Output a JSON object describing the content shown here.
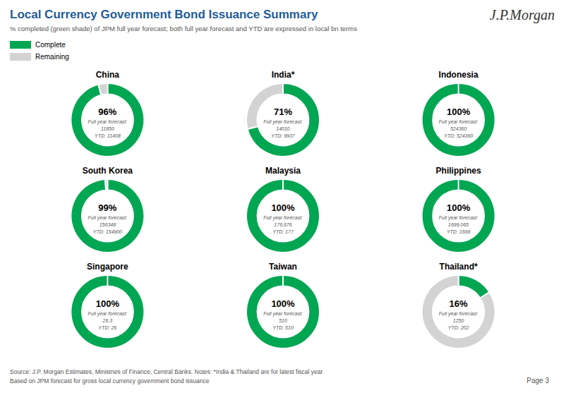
{
  "title": "Local Currency Government Bond Issuance Summary",
  "subtitle": "% completed (green shade) of JPM full year forecast; both full year forecast and YTD are expressed in local bn terms",
  "annotations": [
    "J.P.Morgan",
    "Source: J.P. Morgan Estimates, Ministries of Finance, Central Banks. Notes: *India & Thailand are for latest fiscal year",
    "Based on JPM forecast for gross local currency government bond issuance",
    "Page 3"
  ],
  "chart_data": [
    {
      "type": "pie",
      "title": "China",
      "categories": [
        "Complete",
        "Remaining"
      ],
      "values": [
        96,
        4
      ],
      "value_labels": [
        "96%",
        null
      ],
      "colors": [
        "#00a651",
        "#d3d3d3"
      ],
      "legend": "upper left",
      "annotations": [
        "Full year forecast:",
        "11850",
        "YTD: 11408"
      ]
    },
    {
      "type": "pie",
      "title": "India*",
      "categories": [
        "Complete",
        "Remaining"
      ],
      "values": [
        71,
        29
      ],
      "value_labels": [
        "71%",
        null
      ],
      "colors": [
        "#00a651",
        "#d3d3d3"
      ],
      "annotations": [
        "Full year forecast:",
        "14010",
        "YTD: 9937"
      ]
    },
    {
      "type": "pie",
      "title": "Indonesia",
      "categories": [
        "Complete",
        "Remaining"
      ],
      "values": [
        100,
        0
      ],
      "value_labels": [
        "100%",
        null
      ],
      "colors": [
        "#00a651",
        "#d3d3d3"
      ],
      "annotations": [
        "Full year forecast:",
        "524360",
        "YTD: 524360"
      ]
    },
    {
      "type": "pie",
      "title": "South Korea",
      "categories": [
        "Complete",
        "Remaining"
      ],
      "values": [
        99,
        1
      ],
      "value_labels": [
        "99%",
        null
      ],
      "colors": [
        "#00a651",
        "#d3d3d3"
      ],
      "annotations": [
        "Full year forecast:",
        "156348",
        "YTD: 154900"
      ]
    },
    {
      "type": "pie",
      "title": "Malaysia",
      "categories": [
        "Complete",
        "Remaining"
      ],
      "values": [
        100,
        0
      ],
      "value_labels": [
        "100%",
        null
      ],
      "colors": [
        "#00a651",
        "#d3d3d3"
      ],
      "annotations": [
        "Full year forecast:",
        "176.676",
        "YTD: 177"
      ]
    },
    {
      "type": "pie",
      "title": "Philippines",
      "categories": [
        "Complete",
        "Remaining"
      ],
      "values": [
        100,
        0
      ],
      "value_labels": [
        "100%",
        null
      ],
      "colors": [
        "#00a651",
        "#d3d3d3"
      ],
      "annotations": [
        "Full year forecast:",
        "1699.065",
        "YTD: 1699"
      ]
    },
    {
      "type": "pie",
      "title": "Singapore",
      "categories": [
        "Complete",
        "Remaining"
      ],
      "values": [
        100,
        0
      ],
      "value_labels": [
        "100%",
        null
      ],
      "colors": [
        "#00a651",
        "#d3d3d3"
      ],
      "annotations": [
        "Full year forecast:",
        "26.3",
        "YTD: 26"
      ]
    },
    {
      "type": "pie",
      "title": "Taiwan",
      "categories": [
        "Complete",
        "Remaining"
      ],
      "values": [
        100,
        0
      ],
      "value_labels": [
        "100%",
        null
      ],
      "colors": [
        "#00a651",
        "#d3d3d3"
      ],
      "annotations": [
        "Full year forecast:",
        "510",
        "YTD: 510"
      ]
    },
    {
      "type": "pie",
      "title": "Thailand*",
      "categories": [
        "Complete",
        "Remaining"
      ],
      "values": [
        16,
        84
      ],
      "value_labels": [
        "16%",
        null
      ],
      "colors": [
        "#00a651",
        "#d3d3d3"
      ],
      "annotations": [
        "Full year forecast:",
        "1250",
        "YTD: 202"
      ]
    }
  ]
}
